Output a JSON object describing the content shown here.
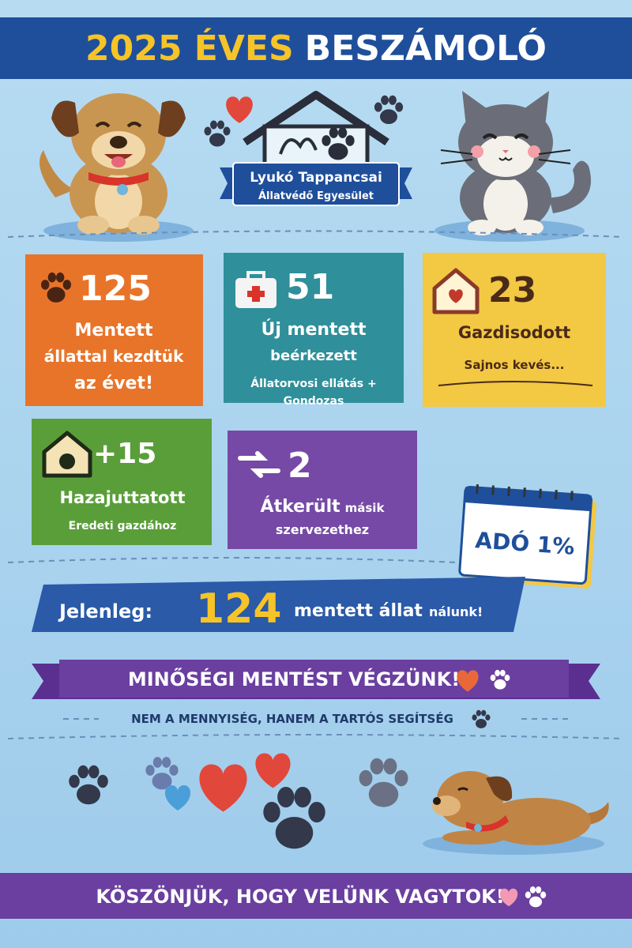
{
  "header": {
    "title_year": "2025 ÉVES",
    "title_main": "BESZÁMOLÓ"
  },
  "logo": {
    "name": "Lyukó Tappancsai",
    "subtitle": "Állatvédő Egyesület"
  },
  "cards": [
    {
      "number": "125",
      "lines": [
        "Mentett",
        "állattal kezdtük",
        "az évet!"
      ]
    },
    {
      "number": "51",
      "lines": [
        "Új mentett",
        "beérkezett"
      ],
      "notes": [
        "Állatorvosi ellátás +",
        "Gondozas"
      ]
    },
    {
      "number": "23",
      "lines": [
        "Gazdisodott"
      ],
      "notes": [
        "Sajnos kevés..."
      ]
    },
    {
      "number": "+15",
      "lines": [
        "Hazajuttatott"
      ],
      "notes": [
        "Eredeti gazdához"
      ]
    },
    {
      "number": "2",
      "lines": [
        "Átkerült",
        "másik",
        "szervezethez"
      ]
    }
  ],
  "calendar": {
    "label": "ADÓ 1%"
  },
  "current": {
    "prefix": "Jelenleg:",
    "number": "124",
    "text": "mentett állat",
    "suffix": "nálunk!"
  },
  "motto": {
    "title": "MINŐSÉGI MENTÉST VÉGZÜNK!",
    "subtitle": "NEM A MENNYISÉG, HANEM A TARTÓS SEGÍTSÉG"
  },
  "footer": {
    "text": "KÖSZÖNJÜK, HOGY VELÜNK VAGYTOK!"
  }
}
